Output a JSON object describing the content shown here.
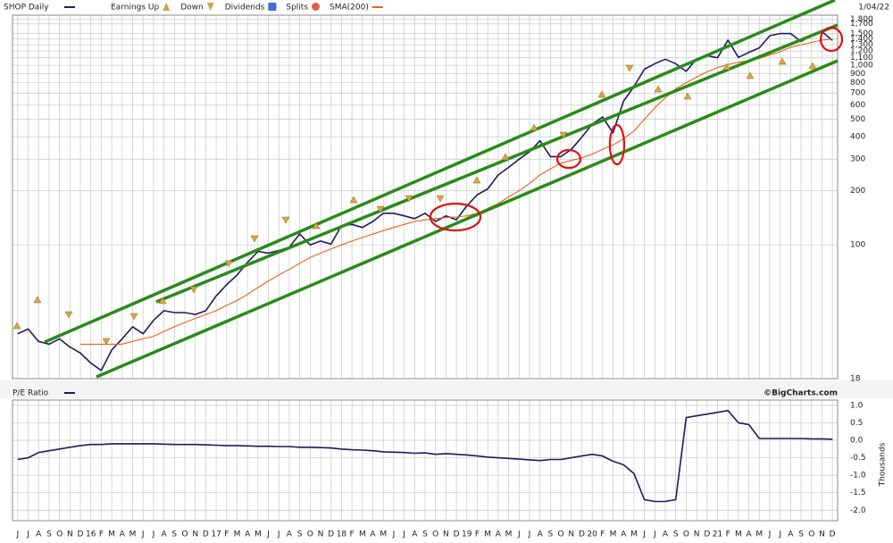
{
  "chart_data": [
    {
      "type": "line",
      "title": "SHOP Daily",
      "date": "1/04/22",
      "log_scale": true,
      "grid": true,
      "markers": [
        {
          "name": "Earnings Up",
          "color": "#c9a24a"
        },
        {
          "name": "Down",
          "color": "#c9a24a"
        },
        {
          "name": "Dividends",
          "color": "#3a6fd8"
        },
        {
          "name": "Splits",
          "color": "#e06040"
        }
      ],
      "categories": [
        "J",
        "J",
        "A",
        "S",
        "O",
        "N",
        "D",
        "16",
        "F",
        "M",
        "A",
        "M",
        "J",
        "J",
        "A",
        "S",
        "O",
        "N",
        "D",
        "17",
        "F",
        "M",
        "A",
        "M",
        "J",
        "J",
        "A",
        "S",
        "O",
        "N",
        "D",
        "18",
        "F",
        "M",
        "A",
        "M",
        "J",
        "J",
        "A",
        "S",
        "O",
        "N",
        "D",
        "19",
        "F",
        "M",
        "A",
        "M",
        "J",
        "J",
        "A",
        "S",
        "O",
        "N",
        "D",
        "20",
        "F",
        "M",
        "A",
        "M",
        "J",
        "J",
        "A",
        "S",
        "O",
        "N",
        "D",
        "21",
        "F",
        "M",
        "A",
        "M",
        "J",
        "J",
        "A",
        "S",
        "O",
        "N",
        "D"
      ],
      "series": [
        {
          "name": "SHOP Daily",
          "color": "#1c1c5a",
          "values": [
            32,
            34,
            29,
            28,
            30,
            27,
            25,
            22,
            20,
            26,
            30,
            35,
            32,
            38,
            43,
            42,
            42,
            41,
            43,
            52,
            60,
            68,
            80,
            92,
            90,
            93,
            97,
            115,
            100,
            105,
            101,
            128,
            130,
            125,
            135,
            150,
            150,
            145,
            140,
            150,
            135,
            145,
            138,
            165,
            190,
            205,
            245,
            270,
            300,
            330,
            380,
            310,
            310,
            340,
            397,
            470,
            515,
            420,
            630,
            760,
            950,
            1020,
            1080,
            1020,
            925,
            1085,
            1130,
            1100,
            1380,
            1105,
            1180,
            1250,
            1460,
            1500,
            1500,
            1355,
            1470,
            1540,
            1375
          ]
        },
        {
          "name": "SMA(200)",
          "color": "#e8621c",
          "values": [
            null,
            null,
            null,
            null,
            null,
            null,
            28,
            28,
            28,
            28,
            28,
            29,
            30,
            31,
            33,
            35,
            37,
            39,
            41,
            43,
            46,
            49,
            53,
            58,
            63,
            68,
            73,
            79,
            85,
            90,
            95,
            100,
            105,
            110,
            115,
            120,
            125,
            130,
            135,
            138,
            140,
            142,
            143,
            145,
            150,
            160,
            170,
            185,
            200,
            220,
            245,
            265,
            285,
            295,
            305,
            320,
            340,
            360,
            390,
            430,
            500,
            580,
            660,
            740,
            800,
            860,
            920,
            970,
            1010,
            1040,
            1060,
            1090,
            1140,
            1190,
            1260,
            1300,
            1340,
            1380,
            1400
          ]
        }
      ],
      "ylim": [
        18,
        1900
      ],
      "yticks": [
        18,
        100,
        200,
        300,
        400,
        500,
        600,
        700,
        800,
        900,
        {
          "value": 1000,
          "label": "1,000"
        },
        {
          "value": 1100,
          "label": "1,100"
        },
        {
          "value": 1200,
          "label": "1,200"
        },
        {
          "value": 1300,
          "label": "1,300"
        },
        {
          "value": 1400,
          "label": "1,400"
        },
        {
          "value": 1500,
          "label": "1,500"
        },
        {
          "value": 1700,
          "label": "1,700"
        },
        {
          "value": 1800,
          "label": "1,800"
        }
      ]
    },
    {
      "type": "line",
      "title": "P/E Ratio",
      "source": "©BigCharts.com",
      "y_label": "Thousands",
      "grid": true,
      "series": [
        {
          "name": "P/E Ratio",
          "color": "#1c1c5a",
          "values": [
            -0.55,
            -0.5,
            -0.35,
            -0.3,
            -0.25,
            -0.2,
            -0.15,
            -0.12,
            -0.12,
            -0.1,
            -0.1,
            -0.1,
            -0.1,
            -0.1,
            -0.11,
            -0.12,
            -0.12,
            -0.12,
            -0.13,
            -0.14,
            -0.15,
            -0.15,
            -0.16,
            -0.17,
            -0.17,
            -0.18,
            -0.18,
            -0.2,
            -0.2,
            -0.21,
            -0.22,
            -0.25,
            -0.27,
            -0.28,
            -0.3,
            -0.33,
            -0.34,
            -0.35,
            -0.37,
            -0.36,
            -0.4,
            -0.38,
            -0.4,
            -0.42,
            -0.45,
            -0.48,
            -0.5,
            -0.52,
            -0.54,
            -0.56,
            -0.58,
            -0.55,
            -0.55,
            -0.5,
            -0.45,
            -0.4,
            -0.45,
            -0.6,
            -0.7,
            -0.95,
            -1.7,
            -1.75,
            -1.75,
            -1.7,
            0.65,
            0.7,
            0.75,
            0.8,
            0.85,
            0.5,
            0.45,
            0.05,
            0.05,
            0.05,
            0.05,
            0.05,
            0.04,
            0.04,
            0.03
          ]
        }
      ],
      "ylim": [
        -2.3,
        1.15
      ],
      "yticks": [
        {
          "value": 1.0,
          "label": "1.0"
        },
        {
          "value": 0.5,
          "label": "0.5"
        },
        {
          "value": 0,
          "label": "0.0"
        },
        {
          "value": -0.5,
          "label": "-0.5"
        },
        {
          "value": -1.0,
          "label": "-1.0"
        },
        {
          "value": -1.5,
          "label": "-1.5"
        },
        {
          "value": -2.0,
          "label": "-2.0"
        }
      ]
    }
  ]
}
